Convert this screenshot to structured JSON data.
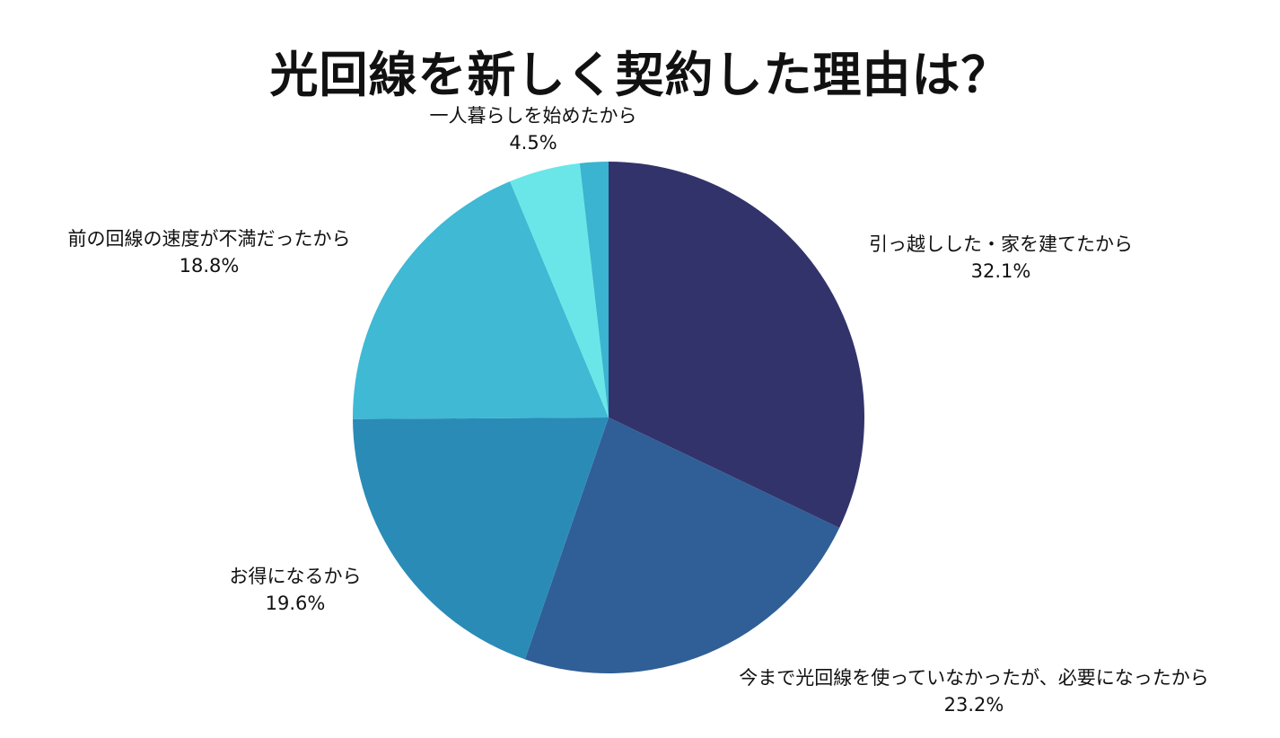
{
  "chart_data": {
    "type": "pie",
    "title": "光回線を新しく契約した理由は？",
    "slices": [
      {
        "label": "引っ越しした・家を建てたから",
        "value": 32.1,
        "value_label": "32.1%",
        "color": "#33336b"
      },
      {
        "label": "今まで光回線を使っていなかったが、必要になったから",
        "value": 23.2,
        "value_label": "23.2%",
        "color": "#2f5f96"
      },
      {
        "label": "お得になるから",
        "value": 19.6,
        "value_label": "19.6%",
        "color": "#2b8bb7"
      },
      {
        "label": "前の回線の速度が不満だったから",
        "value": 18.8,
        "value_label": "18.8%",
        "color": "#3fb9d4"
      },
      {
        "label": "一人暮らしを始めたから",
        "value": 4.5,
        "value_label": "4.5%",
        "color": "#6ae6e8"
      },
      {
        "label": "",
        "value": 1.8,
        "value_label": "",
        "color": "#3ab4d0"
      }
    ],
    "start_angle": "12 o'clock",
    "direction": "clockwise",
    "legend": "none"
  }
}
